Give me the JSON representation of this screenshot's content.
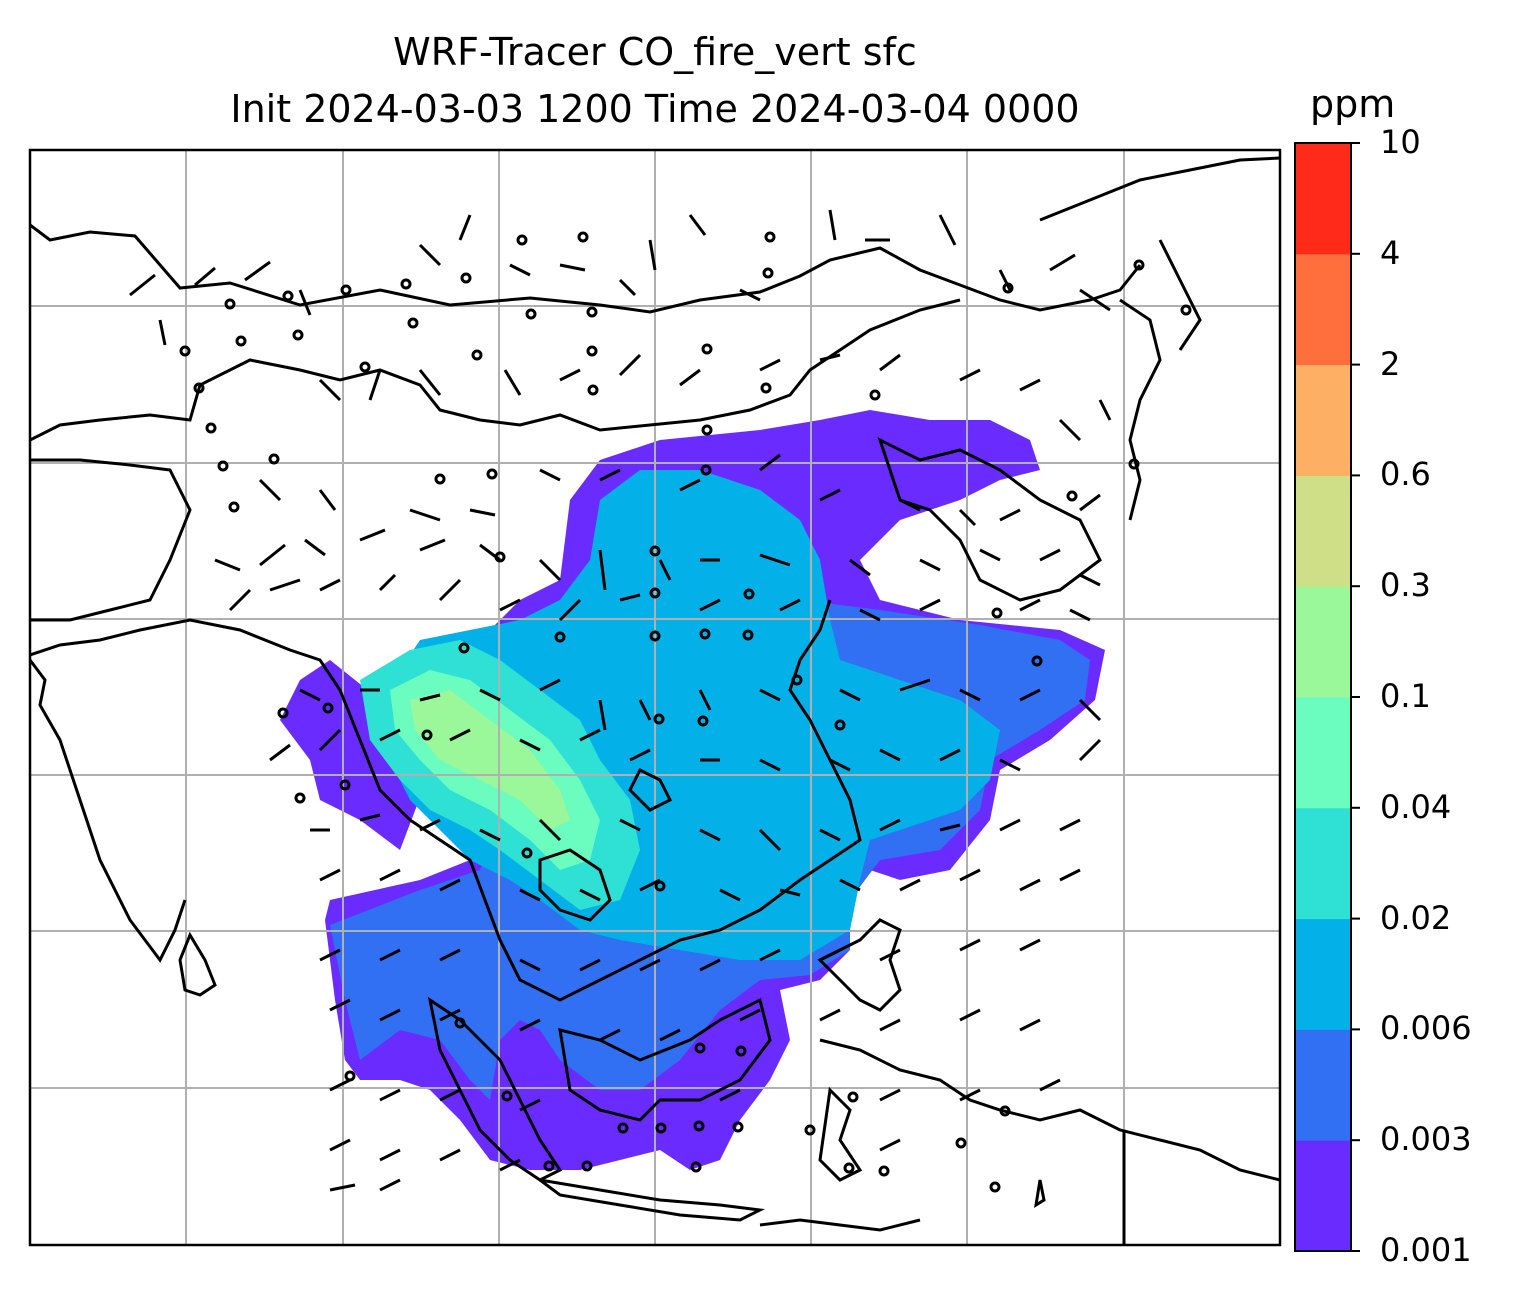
{
  "title": {
    "line1": "WRF-Tracer CO_fire_vert sfc",
    "line2": "Init 2024-03-03 1200 Time 2024-03-04 0000"
  },
  "colorbar": {
    "unit": "ppm",
    "levels": [
      "0.001",
      "0.003",
      "0.006",
      "0.02",
      "0.04",
      "0.1",
      "0.3",
      "0.6",
      "2",
      "4",
      "10"
    ],
    "colors": [
      "#6a2bff",
      "#3170f2",
      "#03b1e8",
      "#2fe0d4",
      "#6bfcbf",
      "#9af79a",
      "#cfdf88",
      "#fdb063",
      "#ff6e3c",
      "#ff2a19"
    ]
  },
  "map": {
    "field": "CO_fire_vert",
    "level": "sfc",
    "grid": "on",
    "overlays": [
      "coastlines",
      "country borders",
      "wind barbs"
    ]
  }
}
